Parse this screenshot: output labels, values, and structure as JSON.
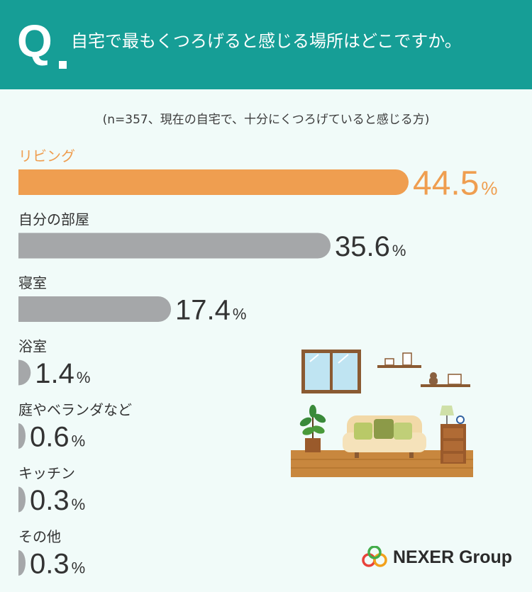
{
  "header": {
    "q_mark": "Q",
    "question": "自宅で最もくつろげると感じる場所はどこですか。"
  },
  "note": "(n=357、現在の自宅で、十分にくつろげていると感じる方)",
  "chart_data": {
    "type": "bar",
    "orientation": "horizontal",
    "categories": [
      "リビング",
      "自分の部屋",
      "寝室",
      "浴室",
      "庭やベランダなど",
      "キッチン",
      "その他"
    ],
    "values": [
      44.5,
      35.6,
      17.4,
      1.4,
      0.6,
      0.3,
      0.3
    ],
    "unit": "%",
    "highlight_color": "#ef9e50",
    "bar_color": "#a5a7a9",
    "highlight_label_color": "#ef9e50",
    "label_color": "#333333"
  },
  "brand": {
    "name": "NEXER Group"
  }
}
